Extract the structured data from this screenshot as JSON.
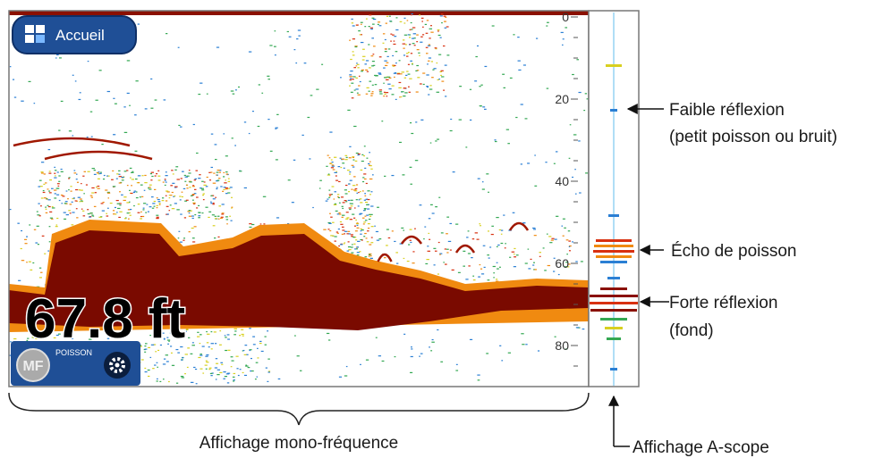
{
  "screen": {
    "home_button": "Accueil",
    "depth_readout": "67.8 ft",
    "mode_badge": "MF",
    "mode_label": "POISSON",
    "depth_scale": {
      "labels": [
        0,
        20,
        40,
        60,
        80
      ]
    }
  },
  "annotations": {
    "weak": {
      "line1": "Faible réflexion",
      "line2": "(petit poisson ou bruit)"
    },
    "fish": "Écho de poisson",
    "strong": {
      "line1": "Forte réflexion",
      "line2": "(fond)"
    },
    "single_freq": "Affichage mono-fréquence",
    "ascope": "Affichage A-scope"
  }
}
